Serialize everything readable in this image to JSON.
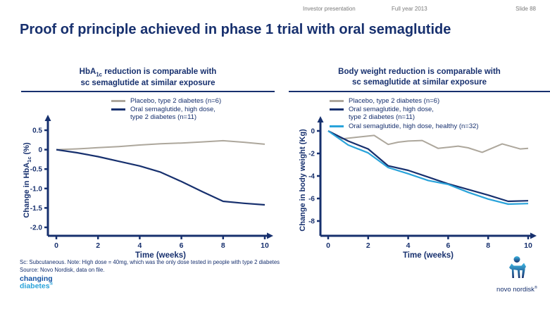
{
  "header": {
    "left": "Investor presentation",
    "center": "Full year 2013",
    "right": "Slide 88"
  },
  "title": "Proof of principle achieved in phase 1 trial with oral semaglutide",
  "footnote": {
    "line1": "Sc: Subcutaneous. Note: High dose = 40mg, which was the only dose tested in people with type 2 diabetes",
    "line2": "Source: Novo Nordisk, data on file."
  },
  "logos": {
    "changing_line1": "changing",
    "changing_line2": "diabetes",
    "registered": "®",
    "novo": "novo nordisk"
  },
  "colors": {
    "navy": "#17306e",
    "placebo_gray": "#ada79c",
    "light_blue": "#29a3da",
    "header_gray": "#7a7a7a"
  },
  "chart_data": [
    {
      "type": "line",
      "title_lines": [
        [
          {
            "t": "HbA"
          },
          {
            "sub": "1c"
          },
          {
            "t": " reduction is comparable with"
          }
        ],
        [
          {
            "t": "sc semaglutide at similar exposure"
          }
        ]
      ],
      "ylabel": [
        {
          "t": "Change in HbA"
        },
        {
          "sub": "1c"
        },
        {
          "t": " (%)"
        }
      ],
      "xlabel": "Time (weeks)",
      "xlim": [
        0,
        10
      ],
      "ylim": [
        -2.0,
        0.5
      ],
      "xticks": [
        0,
        2,
        4,
        6,
        8,
        10
      ],
      "yticks": [
        {
          "label": "0.5",
          "v": 0.5
        },
        {
          "label": "0",
          "v": 0
        },
        {
          "label": "-0.5",
          "v": -0.5
        },
        {
          "label": "-1.0",
          "v": -1.0
        },
        {
          "label": "-1.5",
          "v": -1.5
        },
        {
          "label": "-2.0",
          "v": -2.0
        }
      ],
      "grid": false,
      "legend_position": "top-right",
      "series": [
        {
          "name": "Placebo, type 2 diabetes (n=6)",
          "legend_lines": [
            "Placebo, type 2 diabetes (n=6)"
          ],
          "color": "#ada79c",
          "width": 2,
          "x": [
            0,
            1,
            2,
            3,
            4,
            5,
            6,
            7,
            8,
            9,
            10
          ],
          "y": [
            0,
            0.02,
            0.05,
            0.08,
            0.12,
            0.15,
            0.17,
            0.2,
            0.23,
            0.19,
            0.14
          ]
        },
        {
          "name": "Oral semaglutide, high dose, type 2 diabetes (n=11)",
          "legend_lines": [
            "Oral semaglutide,  high dose,",
            "type 2 diabetes (n=11)"
          ],
          "color": "#17306e",
          "width": 2.2,
          "x": [
            0,
            1,
            2,
            3,
            4,
            5,
            6,
            7,
            8,
            9,
            10
          ],
          "y": [
            0,
            -0.08,
            -0.18,
            -0.3,
            -0.42,
            -0.58,
            -0.82,
            -1.08,
            -1.33,
            -1.38,
            -1.42
          ]
        }
      ]
    },
    {
      "type": "line",
      "title_lines": [
        [
          {
            "t": "Body weight reduction is comparable with"
          }
        ],
        [
          {
            "t": "sc semaglutide at similar exposure"
          }
        ]
      ],
      "ylabel": [
        {
          "t": "Change in body weight (Kg)"
        }
      ],
      "xlabel": "Time (weeks)",
      "xlim": [
        0,
        10
      ],
      "ylim": [
        -8,
        0
      ],
      "xticks": [
        0,
        2,
        4,
        6,
        8,
        10
      ],
      "yticks": [
        {
          "label": "0",
          "v": 0
        },
        {
          "label": "-2",
          "v": -2
        },
        {
          "label": "-4",
          "v": -4
        },
        {
          "label": "-6",
          "v": -6
        },
        {
          "label": "-8",
          "v": -8
        }
      ],
      "grid": false,
      "legend_position": "top-right",
      "series": [
        {
          "name": "Placebo, type 2 diabetes (n=6)",
          "legend_lines": [
            "Placebo, type 2 diabetes (n=6)"
          ],
          "color": "#ada79c",
          "width": 2,
          "x": [
            0,
            0.7,
            1.5,
            2.3,
            3,
            3.5,
            4,
            4.7,
            5.5,
            6,
            6.5,
            7,
            7.7,
            8.7,
            9.6,
            10
          ],
          "y": [
            0,
            -0.7,
            -0.55,
            -0.4,
            -1.2,
            -1.0,
            -0.9,
            -0.85,
            -1.55,
            -1.45,
            -1.35,
            -1.5,
            -1.9,
            -1.15,
            -1.6,
            -1.55
          ]
        },
        {
          "name": "Oral semaglutide, high dose, type 2 diabetes (n=11)",
          "legend_lines": [
            "Oral semaglutide,  high dose,",
            "type 2 diabetes (n=11)"
          ],
          "color": "#17306e",
          "width": 2.2,
          "x": [
            0,
            1,
            2,
            3,
            4,
            5,
            6,
            7,
            8,
            9,
            10
          ],
          "y": [
            0,
            -0.9,
            -1.6,
            -3.1,
            -3.5,
            -4.1,
            -4.7,
            -5.2,
            -5.7,
            -6.25,
            -6.2
          ]
        },
        {
          "name": "Oral semaglutide, high dose, healthy (n=32)",
          "legend_lines": [
            "Oral semaglutide,  high dose, healthy (n=32)"
          ],
          "color": "#29a3da",
          "width": 2.2,
          "x": [
            0,
            1,
            2,
            3,
            4,
            5,
            6,
            7,
            8,
            9,
            10
          ],
          "y": [
            0,
            -1.25,
            -1.95,
            -3.25,
            -3.8,
            -4.4,
            -4.75,
            -5.45,
            -6.05,
            -6.5,
            -6.45
          ]
        }
      ]
    }
  ]
}
